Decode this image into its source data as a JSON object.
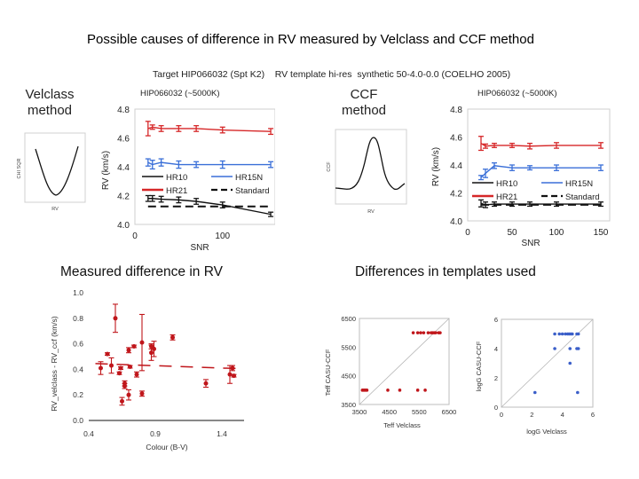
{
  "page": {
    "title": "Possible causes of difference in RV measured by Velclass and CCF method",
    "subtitle": "Target HIP066032 (Spt K2)    RV template hi-res  synthetic 50-4.0-0.0 (COELHO 2005)",
    "velclass_label": [
      "Velclass",
      "method"
    ],
    "ccf_label": [
      "CCF",
      "method"
    ],
    "measured_title": "Measured difference in RV",
    "templates_title": "Differences in templates used"
  },
  "insets": [
    {
      "name": "chi-square-curve",
      "ylabel": "CHI SQR",
      "xlabel": "RV",
      "shape": "parabola-minimum"
    },
    {
      "name": "ccf-curve",
      "ylabel": "CCF",
      "xlabel": "RV",
      "shape": "gaussian-peak"
    }
  ],
  "colors": {
    "hr10": "#111111",
    "hr15n": "#3a6fd8",
    "hr21": "#d62728",
    "standard": "#111111",
    "scatter_red": "#c0161b",
    "scatter_blue": "#3b5fc9"
  },
  "chart_data": [
    {
      "id": "velclass-snr",
      "type": "line",
      "title": "HIP066032   (~5000K)",
      "xlabel": "SNR",
      "ylabel": "RV (km/s)",
      "xlim": [
        0,
        160
      ],
      "ylim": [
        4.0,
        4.8
      ],
      "xticks": [
        0,
        100
      ],
      "yticks": [
        "4.0",
        "4.2",
        "4.4",
        "4.6",
        "4.8"
      ],
      "legend": "inside-middle",
      "series": [
        {
          "name": "HR10",
          "color": "#111111",
          "x": [
            15,
            20,
            30,
            50,
            70,
            100,
            155
          ],
          "y": [
            4.18,
            4.18,
            4.175,
            4.17,
            4.16,
            4.135,
            4.07
          ],
          "err": [
            0.02,
            0.02,
            0.02,
            0.02,
            0.02,
            0.02,
            0.015
          ]
        },
        {
          "name": "HR15N",
          "color": "#3a6fd8",
          "x": [
            15,
            20,
            30,
            50,
            70,
            100,
            155
          ],
          "y": [
            4.43,
            4.415,
            4.43,
            4.415,
            4.415,
            4.415,
            4.415
          ],
          "err": [
            0.025,
            0.03,
            0.025,
            0.025,
            0.02,
            0.025,
            0.02
          ]
        },
        {
          "name": "HR21",
          "color": "#d62728",
          "x": [
            15,
            20,
            30,
            50,
            70,
            100,
            155
          ],
          "y": [
            4.665,
            4.675,
            4.665,
            4.665,
            4.665,
            4.655,
            4.645
          ],
          "err": [
            0.05,
            0.015,
            0.02,
            0.02,
            0.02,
            0.02,
            0.02
          ]
        },
        {
          "name": "Standard",
          "color": "#111111",
          "dashed": true,
          "x": [
            15,
            155
          ],
          "y": [
            4.125,
            4.125
          ]
        }
      ]
    },
    {
      "id": "ccf-snr",
      "type": "line",
      "title": "HIP066032   (~5000K)",
      "xlabel": "SNR",
      "ylabel": "RV (km/s)",
      "xlim": [
        0,
        160
      ],
      "ylim": [
        4.0,
        4.8
      ],
      "xticks": [
        0,
        50,
        100,
        150
      ],
      "yticks": [
        "4.0",
        "4.2",
        "4.4",
        "4.6",
        "4.8"
      ],
      "legend": "inside-middle",
      "series": [
        {
          "name": "HR10",
          "color": "#111111",
          "x": [
            15,
            20,
            30,
            50,
            70,
            100,
            150
          ],
          "y": [
            4.125,
            4.115,
            4.12,
            4.12,
            4.12,
            4.12,
            4.12
          ],
          "err": [
            0.025,
            0.02,
            0.015,
            0.015,
            0.015,
            0.015,
            0.015
          ]
        },
        {
          "name": "HR15N",
          "color": "#3a6fd8",
          "x": [
            15,
            20,
            30,
            50,
            70,
            100,
            150
          ],
          "y": [
            4.31,
            4.34,
            4.395,
            4.38,
            4.38,
            4.38,
            4.38
          ],
          "err": [
            0.015,
            0.03,
            0.02,
            0.02,
            0.015,
            0.02,
            0.02
          ]
        },
        {
          "name": "HR21",
          "color": "#d62728",
          "x": [
            15,
            20,
            30,
            50,
            70,
            100,
            150
          ],
          "y": [
            4.555,
            4.535,
            4.54,
            4.54,
            4.535,
            4.54,
            4.54
          ],
          "err": [
            0.05,
            0.015,
            0.015,
            0.015,
            0.02,
            0.02,
            0.02
          ]
        },
        {
          "name": "Standard",
          "color": "#111111",
          "dashed": true,
          "x": [
            15,
            150
          ],
          "y": [
            4.115,
            4.115
          ]
        }
      ]
    },
    {
      "id": "rv-difference-colour",
      "type": "scatter",
      "title": "Measured difference in RV",
      "xlabel": "Colour (B-V)",
      "ylabel": "RV_velclass - RV_ccf (km/s)",
      "xlim": [
        0.4,
        1.6
      ],
      "ylim": [
        0.0,
        1.0
      ],
      "xticks": [
        "0.4",
        "0.9",
        "1.4"
      ],
      "yticks": [
        "0.0",
        "0.2",
        "0.4",
        "0.6",
        "0.8",
        "1.0"
      ],
      "points": [
        {
          "x": 0.49,
          "y": 0.41,
          "err": 0.05
        },
        {
          "x": 0.54,
          "y": 0.52,
          "err": 0.01
        },
        {
          "x": 0.57,
          "y": 0.43,
          "err": 0.06
        },
        {
          "x": 0.6,
          "y": 0.8,
          "err": 0.11
        },
        {
          "x": 0.63,
          "y": 0.37,
          "err": 0.01
        },
        {
          "x": 0.64,
          "y": 0.41,
          "err": 0.01
        },
        {
          "x": 0.65,
          "y": 0.15,
          "err": 0.03
        },
        {
          "x": 0.67,
          "y": 0.29,
          "err": 0.02
        },
        {
          "x": 0.67,
          "y": 0.27,
          "err": 0.02
        },
        {
          "x": 0.7,
          "y": 0.55,
          "err": 0.02
        },
        {
          "x": 0.7,
          "y": 0.2,
          "err": 0.04
        },
        {
          "x": 0.71,
          "y": 0.42,
          "err": 0.01
        },
        {
          "x": 0.74,
          "y": 0.58,
          "err": 0.01
        },
        {
          "x": 0.76,
          "y": 0.36,
          "err": 0.02
        },
        {
          "x": 0.8,
          "y": 0.61,
          "err": 0.22
        },
        {
          "x": 0.8,
          "y": 0.21,
          "err": 0.02
        },
        {
          "x": 0.87,
          "y": 0.58,
          "err": 0.02
        },
        {
          "x": 0.87,
          "y": 0.53,
          "err": 0.06
        },
        {
          "x": 0.89,
          "y": 0.56,
          "err": 0.06
        },
        {
          "x": 1.03,
          "y": 0.65,
          "err": 0.02
        },
        {
          "x": 1.28,
          "y": 0.29,
          "err": 0.03
        },
        {
          "x": 1.46,
          "y": 0.36,
          "err": 0.07
        },
        {
          "x": 1.48,
          "y": 0.41,
          "err": 0.02
        },
        {
          "x": 1.49,
          "y": 0.35,
          "err": 0.01
        }
      ],
      "trend_dashed": {
        "x": [
          0.45,
          1.55
        ],
        "y": [
          0.445,
          0.405
        ]
      }
    },
    {
      "id": "teff-comparison",
      "type": "scatter",
      "xlabel": "Teff Velclass",
      "ylabel": "Teff CASU-CCF",
      "xlim": [
        3500,
        6500
      ],
      "ylim": [
        3500,
        6500
      ],
      "xticks": [
        "3500",
        "4500",
        "5500",
        "6500"
      ],
      "yticks": [
        "3500",
        "4500",
        "5500",
        "6500"
      ],
      "diagonal": true,
      "color": "#c0161b",
      "points": [
        {
          "x": 3600,
          "y": 4000
        },
        {
          "x": 3650,
          "y": 4000
        },
        {
          "x": 3700,
          "y": 4000
        },
        {
          "x": 3750,
          "y": 4000
        },
        {
          "x": 4450,
          "y": 4000
        },
        {
          "x": 4850,
          "y": 4000
        },
        {
          "x": 5450,
          "y": 4000
        },
        {
          "x": 5700,
          "y": 4000
        },
        {
          "x": 5300,
          "y": 6000
        },
        {
          "x": 5450,
          "y": 6000
        },
        {
          "x": 5550,
          "y": 6000
        },
        {
          "x": 5650,
          "y": 6000
        },
        {
          "x": 5800,
          "y": 6000
        },
        {
          "x": 5900,
          "y": 6000
        },
        {
          "x": 5950,
          "y": 6000
        },
        {
          "x": 6000,
          "y": 6000
        },
        {
          "x": 6050,
          "y": 6000
        },
        {
          "x": 6150,
          "y": 6000
        },
        {
          "x": 6200,
          "y": 6000
        }
      ]
    },
    {
      "id": "logg-comparison",
      "type": "scatter",
      "xlabel": "logG Velclass",
      "ylabel": "logG CASU-CCF",
      "xlim": [
        0,
        6
      ],
      "ylim": [
        0,
        6
      ],
      "xticks": [
        "0",
        "2",
        "4",
        "6"
      ],
      "yticks": [
        "0",
        "2",
        "4",
        "6"
      ],
      "diagonal": true,
      "color": "#3b5fc9",
      "points": [
        {
          "x": 2.2,
          "y": 1
        },
        {
          "x": 5.0,
          "y": 1
        },
        {
          "x": 4.5,
          "y": 3
        },
        {
          "x": 3.5,
          "y": 4
        },
        {
          "x": 4.5,
          "y": 4
        },
        {
          "x": 4.95,
          "y": 4
        },
        {
          "x": 5.05,
          "y": 4
        },
        {
          "x": 3.5,
          "y": 5
        },
        {
          "x": 3.8,
          "y": 5
        },
        {
          "x": 4.0,
          "y": 5
        },
        {
          "x": 4.2,
          "y": 5
        },
        {
          "x": 4.35,
          "y": 5
        },
        {
          "x": 4.45,
          "y": 5
        },
        {
          "x": 4.55,
          "y": 5
        },
        {
          "x": 4.65,
          "y": 5
        },
        {
          "x": 4.95,
          "y": 5
        },
        {
          "x": 5.05,
          "y": 5
        }
      ]
    }
  ]
}
